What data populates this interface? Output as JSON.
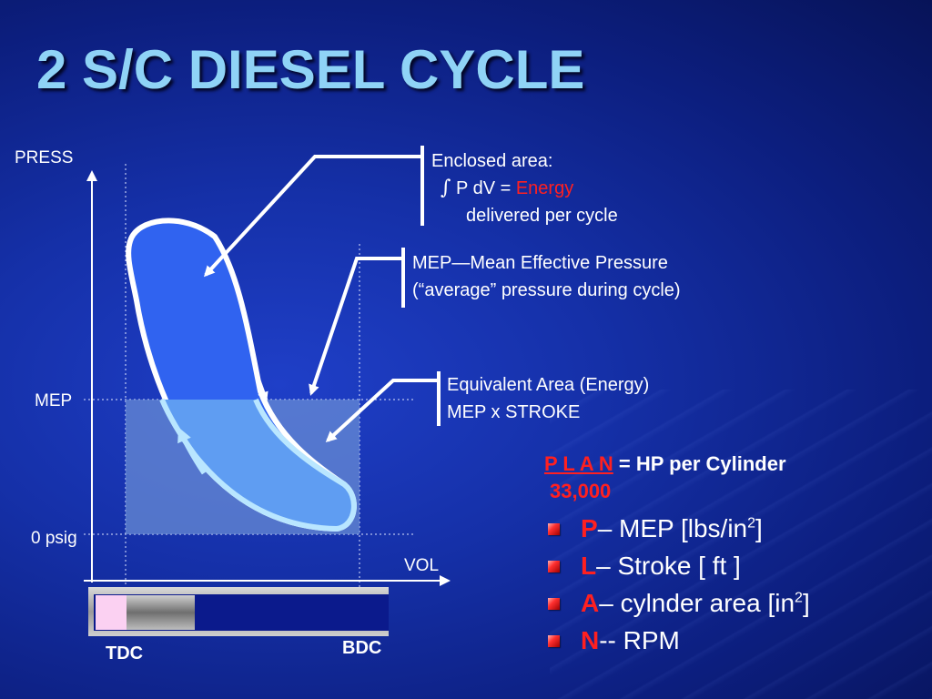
{
  "slide": {
    "title": "2 S/C DIESEL CYCLE"
  },
  "diagram": {
    "y_axis_label": "PRESS",
    "x_axis_label": "VOL",
    "mep_label": "MEP",
    "zero_label": "0 psig",
    "tdc_label": "TDC",
    "bdc_label": "BDC"
  },
  "callouts": {
    "enclosed_area": {
      "heading": "Enclosed area:",
      "integral_symbol": "∫",
      "formula_prefix": "P dV = ",
      "formula_highlight": "Energy",
      "line2": "delivered per cycle"
    },
    "mep": {
      "line1": "MEP—Mean Effective Pressure",
      "line2": "(“average” pressure during cycle)"
    },
    "equivalent": {
      "line1": "Equivalent Area (Energy)",
      "line2": "MEP x STROKE"
    }
  },
  "formula": {
    "numerator": "P L A N",
    "equals": " = ",
    "result": "HP per Cylinder",
    "denominator": "33,000"
  },
  "legend": [
    {
      "letter": "P",
      "text": "– MEP [lbs/in",
      "sup": "2",
      "suffix": "]"
    },
    {
      "letter": "L",
      "text": "– Stroke [ ft ]",
      "sup": "",
      "suffix": ""
    },
    {
      "letter": "A",
      "text": "– cylnder area [in",
      "sup": "2",
      "suffix": "]"
    },
    {
      "letter": "N",
      "text": "-- RPM",
      "sup": "",
      "suffix": ""
    }
  ],
  "colors": {
    "title": "#8fd3f6",
    "highlight": "#ff2020",
    "loop_fill": "#2f63f0",
    "mep_rect": "#6b8fd6"
  }
}
